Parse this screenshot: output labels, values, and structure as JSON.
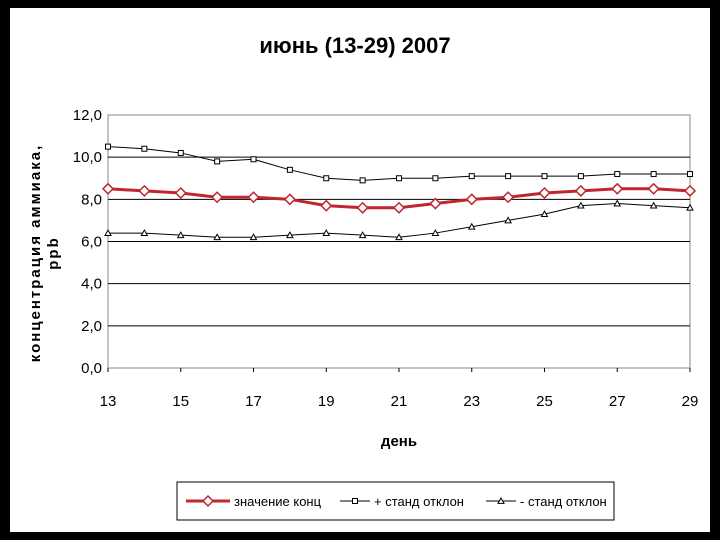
{
  "chart_data": {
    "type": "line",
    "title": "июнь (13-29) 2007",
    "xlabel": "день",
    "ylabel_line1": "концентрация аммиака,",
    "ylabel_line2": "ppb",
    "x": [
      13,
      14,
      15,
      16,
      17,
      18,
      19,
      20,
      21,
      22,
      23,
      24,
      25,
      26,
      27,
      28,
      29
    ],
    "x_ticks": [
      "13",
      "15",
      "17",
      "19",
      "21",
      "23",
      "25",
      "27",
      "29"
    ],
    "y_ticks": [
      "0,0",
      "2,0",
      "4,0",
      "6,0",
      "8,0",
      "10,0",
      "12,0"
    ],
    "xlim": [
      13,
      29
    ],
    "ylim": [
      0,
      12
    ],
    "grid": "horizontal",
    "legend_position": "bottom",
    "series": [
      {
        "name": "значение конц",
        "color": "#c0272d",
        "marker": "diamond",
        "values": [
          8.5,
          8.4,
          8.3,
          8.1,
          8.1,
          8.0,
          7.7,
          7.6,
          7.6,
          7.8,
          8.0,
          8.1,
          8.3,
          8.4,
          8.5,
          8.5,
          8.4
        ]
      },
      {
        "name": "+ станд отклон",
        "color": "#000000",
        "marker": "square",
        "values": [
          10.5,
          10.4,
          10.2,
          9.8,
          9.9,
          9.4,
          9.0,
          8.9,
          9.0,
          9.0,
          9.1,
          9.1,
          9.1,
          9.1,
          9.2,
          9.2,
          9.2
        ]
      },
      {
        "name": "- станд отклон",
        "color": "#000000",
        "marker": "triangle",
        "values": [
          6.4,
          6.4,
          6.3,
          6.2,
          6.2,
          6.3,
          6.4,
          6.3,
          6.2,
          6.4,
          6.7,
          7.0,
          7.3,
          7.7,
          7.8,
          7.7,
          7.6
        ]
      }
    ]
  }
}
